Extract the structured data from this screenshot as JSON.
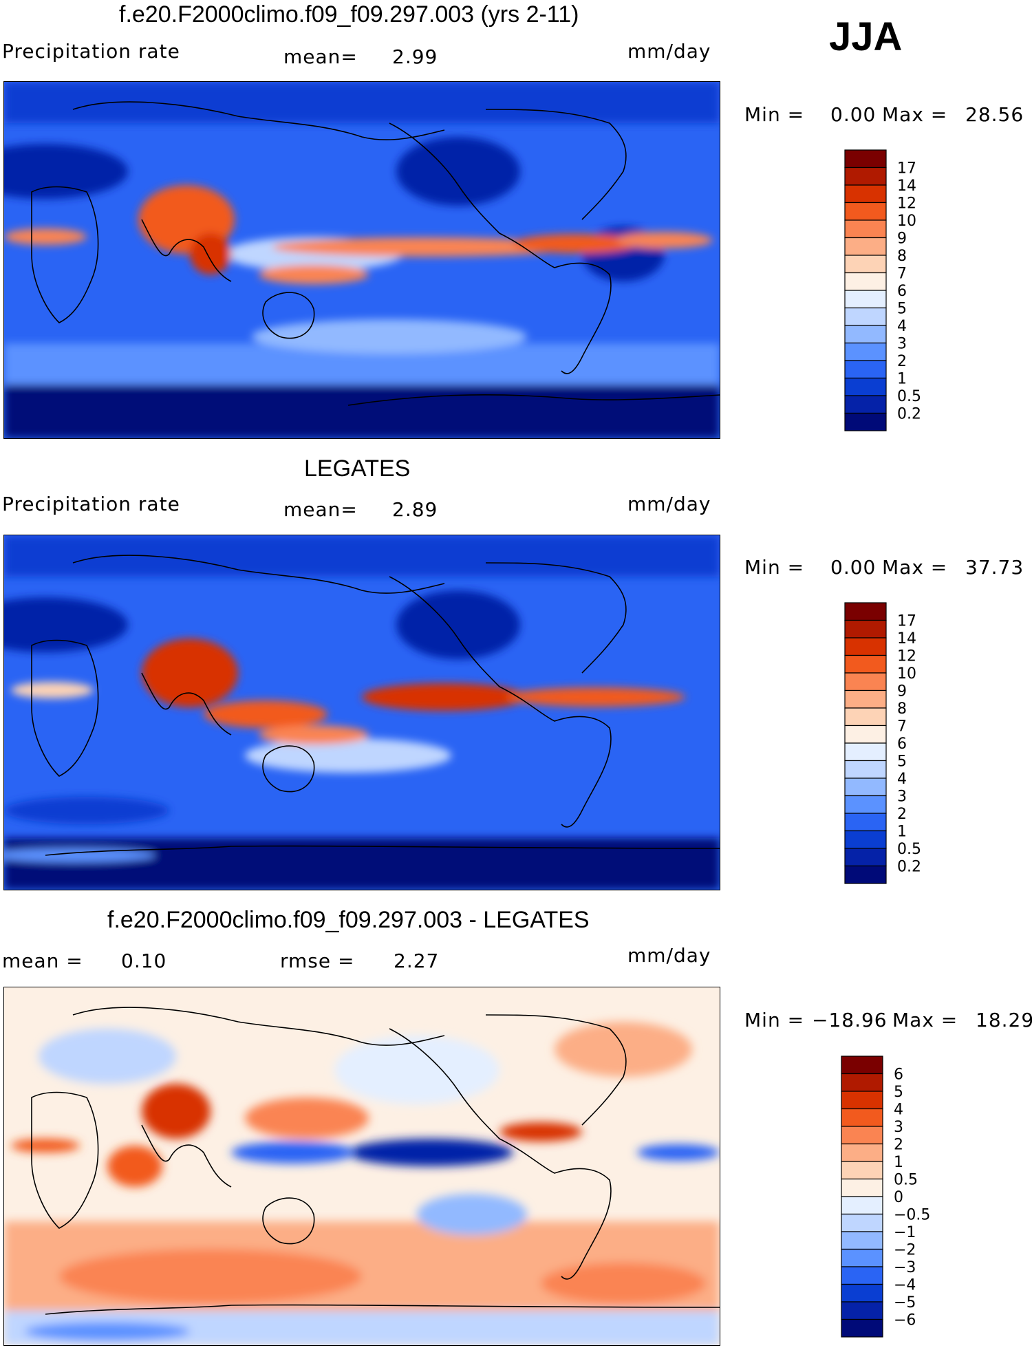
{
  "season": "JJA",
  "panels": [
    {
      "id": "model",
      "title": "f.e20.F2000climo.f09_f09.297.003 (yrs 2-11)",
      "left_label": "Precipitation rate",
      "stat1_label": "mean=",
      "stat1_value": "2.99",
      "stat2_label": "",
      "stat2_value": "",
      "units": "mm/day",
      "min_label": "Min =",
      "min_value": "0.00",
      "max_label": "Max =",
      "max_value": "28.56",
      "colorbar": {
        "ticks": [
          "17",
          "14",
          "12",
          "10",
          "9",
          "8",
          "7",
          "6",
          "5",
          "4",
          "3",
          "2",
          "1",
          "0.5",
          "0.2"
        ],
        "colors": [
          "#7a0000",
          "#b01a00",
          "#d83200",
          "#f25a1e",
          "#fa8452",
          "#fcae86",
          "#fdd3b6",
          "#fdf0e4",
          "#e4efff",
          "#bfd6ff",
          "#92b9ff",
          "#5b92ff",
          "#2a64f4",
          "#0a3ed2",
          "#0522a8",
          "#000a78"
        ]
      }
    },
    {
      "id": "obs",
      "title": "LEGATES",
      "left_label": "Precipitation rate",
      "stat1_label": "mean=",
      "stat1_value": "2.89",
      "stat2_label": "",
      "stat2_value": "",
      "units": "mm/day",
      "min_label": "Min =",
      "min_value": "0.00",
      "max_label": "Max =",
      "max_value": "37.73",
      "colorbar": {
        "ticks": [
          "17",
          "14",
          "12",
          "10",
          "9",
          "8",
          "7",
          "6",
          "5",
          "4",
          "3",
          "2",
          "1",
          "0.5",
          "0.2"
        ],
        "colors": [
          "#7a0000",
          "#b01a00",
          "#d83200",
          "#f25a1e",
          "#fa8452",
          "#fcae86",
          "#fdd3b6",
          "#fdf0e4",
          "#e4efff",
          "#bfd6ff",
          "#92b9ff",
          "#5b92ff",
          "#2a64f4",
          "#0a3ed2",
          "#0522a8",
          "#000a78"
        ]
      }
    },
    {
      "id": "diff",
      "title": "f.e20.F2000climo.f09_f09.297.003 - LEGATES",
      "left_label": "mean =",
      "left_value": "0.10",
      "stat1_label": "rmse =",
      "stat1_value": "2.27",
      "units": "mm/day",
      "min_label": "Min =",
      "min_value": "−18.96",
      "max_label": "Max =",
      "max_value": "18.29",
      "colorbar": {
        "ticks": [
          "6",
          "5",
          "4",
          "3",
          "2",
          "1",
          "0.5",
          "0",
          "−0.5",
          "−1",
          "−2",
          "−3",
          "−4",
          "−5",
          "−6"
        ],
        "colors": [
          "#7a0000",
          "#b01a00",
          "#d83200",
          "#f25a1e",
          "#fa8452",
          "#fcae86",
          "#fdd3b6",
          "#fdf0e4",
          "#e4efff",
          "#bfd6ff",
          "#92b9ff",
          "#5b92ff",
          "#2a64f4",
          "#0a3ed2",
          "#0522a8",
          "#000a78"
        ]
      }
    }
  ]
}
